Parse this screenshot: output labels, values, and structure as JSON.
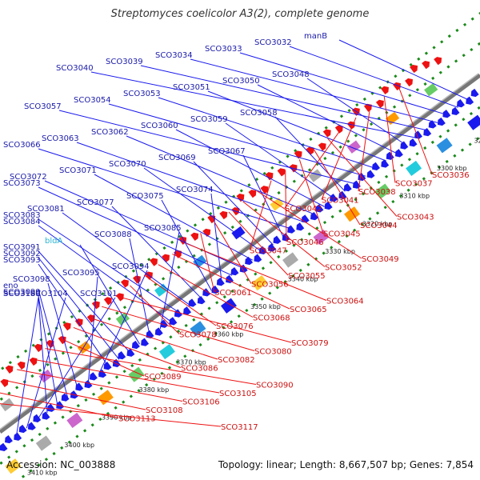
{
  "title": "Streptomyces coelicolor A3(2), complete genome",
  "footer": {
    "accession": "Accession: NC_003888",
    "summary": "Topology: linear; Length: 8,667,507 bp; Genes: 7,854"
  },
  "colors": {
    "forward_gene": "#1a1aee",
    "reverse_gene": "#ee1111",
    "forward_label": "#1a1aaa",
    "reverse_label": "#cc1111",
    "special_label": "#29b6d6",
    "axis_tick": "#1a8a1a",
    "backbone": "#777777"
  },
  "kbp_ticks": [
    "3290 kbp",
    "3300 kbp",
    "3310 kbp",
    "3320 kbp",
    "3330 kbp",
    "3340 kbp",
    "3350 kbp",
    "3360 kbp",
    "3370 kbp",
    "3380 kbp",
    "3390 kbp",
    "3400 kbp",
    "3410 kbp"
  ],
  "forward_labels": [
    "manB",
    "SCO3032",
    "SCO3033",
    "SCO3034",
    "SCO3039",
    "SCO3040",
    "SCO3048",
    "SCO3050",
    "SCO3051",
    "SCO3053",
    "SCO3054",
    "SCO3057",
    "SCO3058",
    "SCO3059",
    "SCO3060",
    "SCO3062",
    "SCO3063",
    "SCO3066",
    "SCO3067",
    "SCO3069",
    "SCO3070",
    "SCO3071",
    "SCO3072",
    "SCO3073",
    "SCO3074",
    "SCO3075",
    "SCO3077",
    "SCO3081",
    "SCO3083",
    "SCO3084",
    "SCO3085",
    "SCO3088",
    "bldA",
    "SCO3091",
    "SCO3092",
    "SCO3093",
    "SCO3094",
    "SCO3095",
    "SCO3098",
    "eno",
    "SCO3099",
    "SCO3100",
    "SCO3101",
    "SCO3104",
    "SCO3109"
  ],
  "reverse_labels": [
    "SCO3036",
    "SCO3037",
    "SCO3038",
    "SCO3041",
    "SCO3042",
    "SCO3043",
    "SCO3044",
    "SCO3045",
    "SCO3046",
    "SCO3047",
    "SCO3049",
    "SCO3052",
    "SCO3055",
    "SCO3056",
    "SCO3061",
    "SCO3064",
    "SCO3065",
    "SCO3068",
    "SCO3076",
    "SCO3078",
    "SCO3079",
    "SCO3080",
    "SCO3082",
    "SCO3086",
    "SCO3089",
    "SCO3090",
    "SCO3105",
    "SCO3106",
    "SCO3108",
    "SCO3113",
    "SCO3117"
  ]
}
